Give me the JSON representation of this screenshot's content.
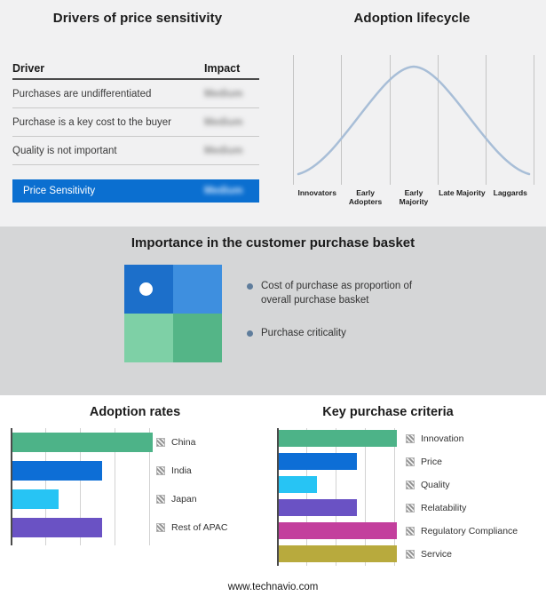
{
  "page": {
    "footer_text": "www.technavio.com"
  },
  "colors": {
    "bullet_dot": "#5f7d9c",
    "highlight_row_bg": "#0b6fd0",
    "curve": "#a8bed7"
  },
  "basket": {
    "title": "Importance in the customer purchase basket",
    "bullets": [
      "Cost of purchase as proportion of overall purchase basket",
      "Purchase criticality"
    ],
    "quadrant_colors": [
      "#1c6fca",
      "#3e8fdf",
      "#7ed0a6",
      "#54b587"
    ],
    "marker": "white dot in top-left quadrant"
  },
  "chart_data": [
    {
      "type": "table",
      "title": "Drivers of price sensitivity",
      "columns": [
        "Driver",
        "Impact"
      ],
      "rows": [
        {
          "driver": "Purchases are undifferentiated",
          "impact": "Medium",
          "impact_blurred": true
        },
        {
          "driver": "Purchase is a key cost to the buyer",
          "impact": "Medium",
          "impact_blurred": true
        },
        {
          "driver": "Quality is not important",
          "impact": "Medium",
          "impact_blurred": true
        }
      ],
      "summary_row": {
        "label": "Price Sensitivity",
        "impact": "Medium",
        "impact_blurred": true,
        "bg": "#0b6fd0"
      }
    },
    {
      "type": "line",
      "title": "Adoption lifecycle",
      "subtype": "bell-curve",
      "categories": [
        "Innovators",
        "Early Adopters",
        "Early Majority",
        "Late Majority",
        "Laggards"
      ],
      "values": [
        8,
        52,
        100,
        52,
        8
      ],
      "grid": "vertical-only",
      "curve_color": "#a8bed7"
    },
    {
      "type": "bar",
      "title": "Adoption rates",
      "orientation": "horizontal",
      "categories": [
        "China",
        "India",
        "Japan",
        "Rest of APAC"
      ],
      "values": [
        100,
        64,
        33,
        64
      ],
      "units": "relative length, max = 100 (axis unlabeled)",
      "colors": [
        "#4db388",
        "#0d6ed6",
        "#27c4f4",
        "#6a52c4"
      ],
      "legend_position": "right",
      "grid": true
    },
    {
      "type": "bar",
      "title": "Key purchase criteria",
      "orientation": "horizontal",
      "categories": [
        "Innovation",
        "Price",
        "Quality",
        "Relatability",
        "Regulatory Compliance",
        "Service"
      ],
      "values": [
        100,
        66,
        32,
        66,
        100,
        100
      ],
      "units": "relative length, max = 100 (axis unlabeled)",
      "colors": [
        "#4db388",
        "#0d6ed6",
        "#27c4f4",
        "#6a52c4",
        "#c33f9d",
        "#b8aa3d"
      ],
      "legend_position": "right",
      "grid": true
    }
  ]
}
